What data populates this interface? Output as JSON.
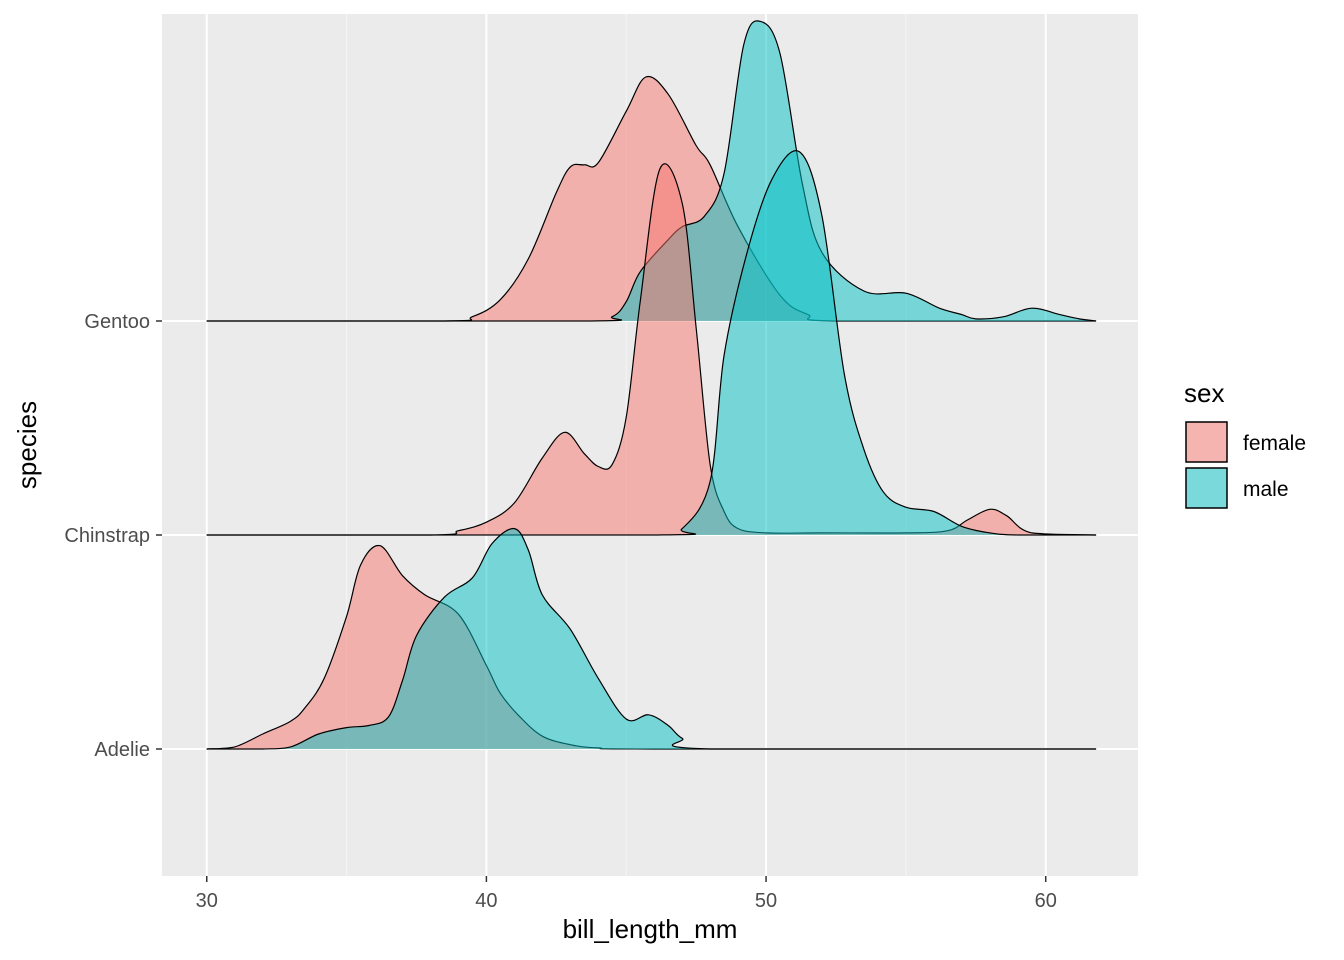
{
  "chart_data": {
    "type": "area",
    "subtype": "ridgeline-density",
    "xlabel": "bill_length_mm",
    "ylabel": "species",
    "xlim": [
      28.4,
      63.3
    ],
    "x_ticks": [
      30,
      40,
      50,
      60
    ],
    "categories": [
      "Adelie",
      "Chinstrap",
      "Gentoo"
    ],
    "grid": true,
    "legend": {
      "title": "sex",
      "placement": "right"
    },
    "colors": {
      "female": "#F8766D",
      "male": "#00BFC4",
      "panel": "#EBEBEB",
      "grid": "#FFFFFF"
    },
    "ridge_height_units": 1.0,
    "series": [
      {
        "name": "female",
        "species": "Adelie",
        "points": [
          [
            30,
            0
          ],
          [
            31,
            0.01
          ],
          [
            32,
            0.07
          ],
          [
            33,
            0.13
          ],
          [
            33.5,
            0.19
          ],
          [
            34.2,
            0.33
          ],
          [
            35,
            0.62
          ],
          [
            35.5,
            0.86
          ],
          [
            36.2,
            0.95
          ],
          [
            37,
            0.81
          ],
          [
            37.8,
            0.72
          ],
          [
            39,
            0.63
          ],
          [
            40,
            0.39
          ],
          [
            40.5,
            0.26
          ],
          [
            41.2,
            0.15
          ],
          [
            42,
            0.06
          ],
          [
            43,
            0.02
          ],
          [
            44,
            0.005
          ],
          [
            46,
            0
          ],
          [
            61.8,
            0
          ]
        ]
      },
      {
        "name": "male",
        "species": "Adelie",
        "points": [
          [
            30,
            0
          ],
          [
            32,
            0
          ],
          [
            33,
            0.01
          ],
          [
            34,
            0.07
          ],
          [
            35,
            0.1
          ],
          [
            35.8,
            0.11
          ],
          [
            36.5,
            0.15
          ],
          [
            37,
            0.32
          ],
          [
            37.5,
            0.53
          ],
          [
            38.5,
            0.71
          ],
          [
            39.5,
            0.8
          ],
          [
            40.2,
            0.96
          ],
          [
            41,
            1.03
          ],
          [
            41.5,
            0.93
          ],
          [
            42,
            0.72
          ],
          [
            43,
            0.56
          ],
          [
            44,
            0.33
          ],
          [
            45,
            0.14
          ],
          [
            45.8,
            0.16
          ],
          [
            46.5,
            0.11
          ],
          [
            47,
            0.05
          ],
          [
            48,
            0
          ],
          [
            61.8,
            0
          ]
        ]
      },
      {
        "name": "female",
        "species": "Chinstrap",
        "points": [
          [
            30,
            0
          ],
          [
            38,
            0
          ],
          [
            39,
            0.02
          ],
          [
            40,
            0.06
          ],
          [
            41,
            0.15
          ],
          [
            42,
            0.36
          ],
          [
            42.8,
            0.48
          ],
          [
            43.5,
            0.38
          ],
          [
            44,
            0.32
          ],
          [
            44.5,
            0.33
          ],
          [
            45,
            0.55
          ],
          [
            45.5,
            1.09
          ],
          [
            46.2,
            1.71
          ],
          [
            47,
            1.55
          ],
          [
            47.5,
            0.97
          ],
          [
            48,
            0.33
          ],
          [
            48.5,
            0.11
          ],
          [
            49,
            0.03
          ],
          [
            50,
            0.01
          ],
          [
            52,
            0.01
          ],
          [
            55,
            0.01
          ],
          [
            56.5,
            0.02
          ],
          [
            57.2,
            0.07
          ],
          [
            58,
            0.12
          ],
          [
            58.6,
            0.09
          ],
          [
            59.5,
            0.01
          ],
          [
            61.8,
            0
          ]
        ]
      },
      {
        "name": "male",
        "species": "Chinstrap",
        "points": [
          [
            30,
            0
          ],
          [
            46,
            0
          ],
          [
            47,
            0.03
          ],
          [
            48,
            0.25
          ],
          [
            48.5,
            0.84
          ],
          [
            49.3,
            1.31
          ],
          [
            50.2,
            1.66
          ],
          [
            51.2,
            1.79
          ],
          [
            52,
            1.49
          ],
          [
            52.8,
            0.75
          ],
          [
            53.5,
            0.4
          ],
          [
            54.2,
            0.2
          ],
          [
            55,
            0.13
          ],
          [
            56,
            0.11
          ],
          [
            57,
            0.04
          ],
          [
            58,
            0.01
          ],
          [
            59,
            0
          ],
          [
            61.8,
            0
          ]
        ]
      },
      {
        "name": "female",
        "species": "Gentoo",
        "points": [
          [
            30,
            0
          ],
          [
            38.5,
            0
          ],
          [
            39.5,
            0.02
          ],
          [
            40.5,
            0.1
          ],
          [
            41.5,
            0.29
          ],
          [
            42.5,
            0.6
          ],
          [
            43,
            0.72
          ],
          [
            43.5,
            0.73
          ],
          [
            44,
            0.74
          ],
          [
            45,
            0.98
          ],
          [
            45.7,
            1.14
          ],
          [
            46.5,
            1.06
          ],
          [
            47.5,
            0.82
          ],
          [
            48,
            0.73
          ],
          [
            49,
            0.44
          ],
          [
            50.5,
            0.12
          ],
          [
            51.5,
            0.03
          ],
          [
            52.5,
            0
          ],
          [
            61.8,
            0
          ]
        ]
      },
      {
        "name": "male",
        "species": "Gentoo",
        "points": [
          [
            30,
            0
          ],
          [
            43.5,
            0
          ],
          [
            44.5,
            0.02
          ],
          [
            45,
            0.09
          ],
          [
            45.5,
            0.23
          ],
          [
            46.5,
            0.38
          ],
          [
            47,
            0.44
          ],
          [
            47.8,
            0.49
          ],
          [
            48.5,
            0.69
          ],
          [
            49.2,
            1.29
          ],
          [
            49.8,
            1.4
          ],
          [
            50.5,
            1.25
          ],
          [
            51.3,
            0.64
          ],
          [
            52,
            0.32
          ],
          [
            53.5,
            0.14
          ],
          [
            55,
            0.13
          ],
          [
            56.2,
            0.06
          ],
          [
            57,
            0.03
          ],
          [
            57.5,
            0.01
          ],
          [
            58.5,
            0.02
          ],
          [
            59.5,
            0.06
          ],
          [
            60.5,
            0.03
          ],
          [
            61.2,
            0.01
          ],
          [
            61.8,
            0
          ]
        ]
      }
    ]
  }
}
